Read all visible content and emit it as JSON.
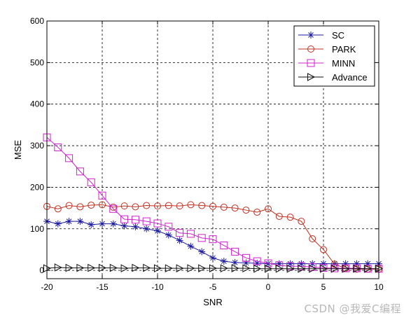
{
  "chart_data": {
    "type": "line",
    "xlabel": "SNR",
    "ylabel": "MSE",
    "xlim": [
      -20,
      10
    ],
    "ylim": [
      -20,
      600
    ],
    "x_ticks": [
      -20,
      -15,
      -10,
      -5,
      0,
      5,
      10
    ],
    "y_ticks": [
      0,
      100,
      200,
      300,
      400,
      500,
      600
    ],
    "grid": true,
    "grid_style": "dashed",
    "legend_position": "top-right",
    "x": [
      -20,
      -19,
      -18,
      -17,
      -16,
      -15,
      -14,
      -13,
      -12,
      -11,
      -10,
      -9,
      -8,
      -7,
      -6,
      -5,
      -4,
      -3,
      -2,
      -1,
      0,
      1,
      2,
      3,
      4,
      5,
      6,
      7,
      8,
      9,
      10
    ],
    "series": [
      {
        "name": "SC",
        "color": "#1a1aa0",
        "marker": "star",
        "values": [
          118,
          112,
          118,
          118,
          110,
          112,
          112,
          107,
          105,
          100,
          95,
          85,
          72,
          58,
          45,
          30,
          22,
          19,
          18,
          17,
          16,
          16,
          16,
          16,
          16,
          16,
          16,
          16,
          16,
          16,
          16
        ]
      },
      {
        "name": "PARK",
        "color": "#c03020",
        "marker": "circle",
        "values": [
          154,
          148,
          156,
          153,
          157,
          158,
          152,
          155,
          153,
          156,
          155,
          156,
          155,
          158,
          156,
          154,
          152,
          150,
          145,
          140,
          148,
          130,
          128,
          118,
          76,
          50,
          15,
          5,
          3,
          3,
          3
        ]
      },
      {
        "name": "MINN",
        "color": "#d020d0",
        "marker": "square",
        "values": [
          320,
          296,
          270,
          238,
          212,
          180,
          148,
          123,
          122,
          118,
          113,
          105,
          90,
          88,
          78,
          75,
          60,
          45,
          30,
          22,
          17,
          12,
          10,
          10,
          8,
          6,
          5,
          5,
          5,
          4,
          4
        ]
      },
      {
        "name": "Advance",
        "color": "#111111",
        "marker": "triangle-right",
        "values": [
          5,
          7,
          6,
          6,
          6,
          6,
          6,
          5,
          6,
          6,
          5,
          5,
          5,
          5,
          5,
          5,
          5,
          5,
          5,
          4,
          4,
          4,
          4,
          4,
          4,
          4,
          4,
          4,
          4,
          4,
          4
        ]
      }
    ]
  },
  "watermark": "CSDN @我爱C编程"
}
